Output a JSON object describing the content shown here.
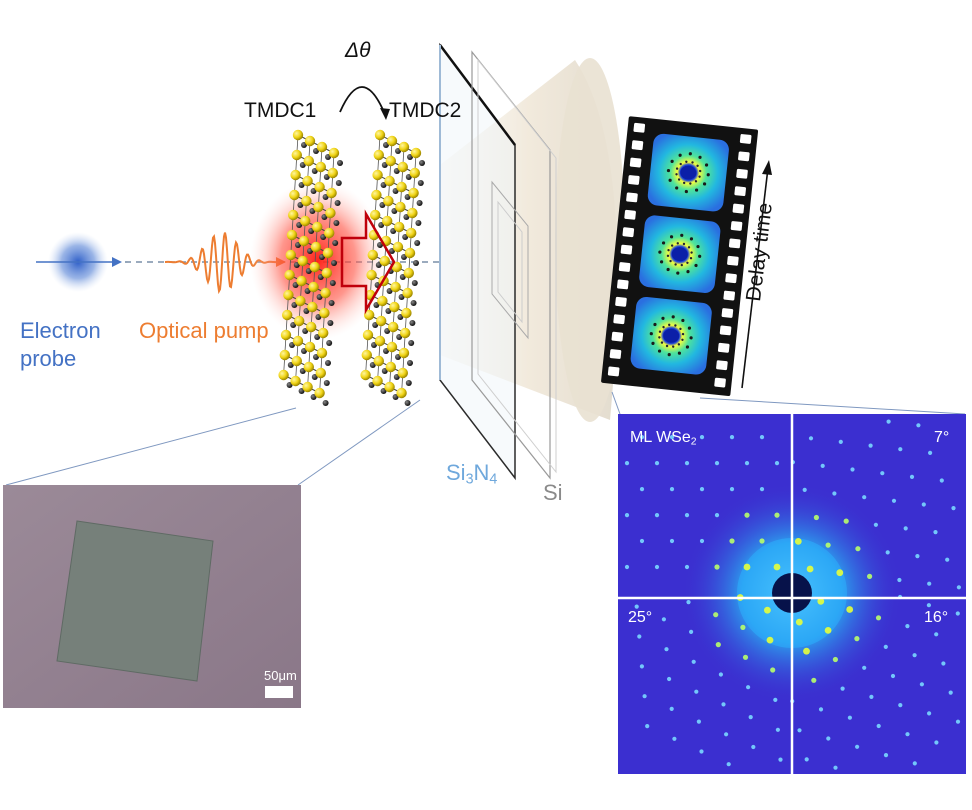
{
  "labels": {
    "delta_theta": "Δθ",
    "tmdc1": "TMDC1",
    "tmdc2": "TMDC2",
    "electron_probe_line1": "Electron",
    "electron_probe_line2": "probe",
    "optical_pump": "Optical pump",
    "si3n4_prefix": "Si",
    "si3n4_sub1": "3",
    "si3n4_mid": "N",
    "si3n4_sub2": "4",
    "si": "Si",
    "delay_time": "Delay time"
  },
  "micrograph": {
    "scale_bar_label": "50μm"
  },
  "diffraction": {
    "sample_prefix": "ML WSe",
    "sample_sub": "2",
    "angle_top_right": "7°",
    "angle_bottom_left": "25°",
    "angle_bottom_right": "16°"
  },
  "colors": {
    "electron": "#4472c4",
    "pump": "#ed7d31",
    "diffraction_bg": "#3b2fd0",
    "spot": "#e6ff3a",
    "selenium": "#f5e21a",
    "tungsten": "#3a3a3a"
  }
}
